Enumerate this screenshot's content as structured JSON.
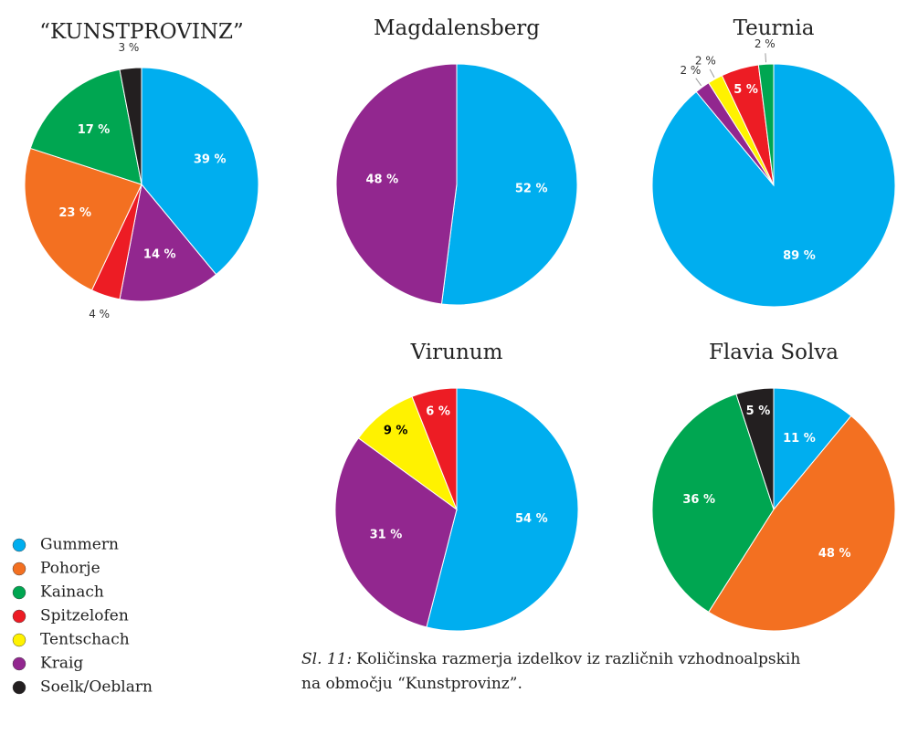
{
  "chart_data": [
    {
      "type": "pie",
      "title": "“KUNSTPROVINZ”",
      "categories": [
        "Gummern",
        "Kraig",
        "Spitzelofen",
        "Pohorje",
        "Kainach",
        "Soelk/Oeblarn"
      ],
      "values": [
        39,
        14,
        4,
        23,
        17,
        3
      ],
      "value_labels": [
        "39 %",
        "14 %",
        "4 %",
        "23 %",
        "17 %",
        "3 %"
      ]
    },
    {
      "type": "pie",
      "title": "Magdalensberg",
      "categories": [
        "Gummern",
        "Kraig"
      ],
      "values": [
        52,
        48
      ],
      "value_labels": [
        "52 %",
        "48 %"
      ]
    },
    {
      "type": "pie",
      "title": "Teurnia",
      "categories": [
        "Gummern",
        "Kraig",
        "Tentschach",
        "Spitzelofen",
        "Kainach"
      ],
      "values": [
        89,
        2,
        2,
        5,
        2
      ],
      "value_labels": [
        "89 %",
        "2 %",
        "2 %",
        "5 %",
        "2 %"
      ]
    },
    {
      "type": "pie",
      "title": "Virunum",
      "categories": [
        "Gummern",
        "Kraig",
        "Tentschach",
        "Spitzelofen"
      ],
      "values": [
        54,
        31,
        9,
        6
      ],
      "value_labels": [
        "54 %",
        "31 %",
        "9 %",
        "6 %"
      ]
    },
    {
      "type": "pie",
      "title": "Flavia Solva",
      "categories": [
        "Gummern",
        "Pohorje",
        "Kainach",
        "Soelk/Oeblarn"
      ],
      "values": [
        11,
        48,
        36,
        5
      ],
      "value_labels": [
        "11 %",
        "48 %",
        "36 %",
        "5 %"
      ]
    }
  ],
  "legend": {
    "categories": [
      "Gummern",
      "Pohorje",
      "Kainach",
      "Spitzelofen",
      "Tentschach",
      "Kraig",
      "Soelk/Oeblarn"
    ],
    "colors": [
      "#00aeef",
      "#f37021",
      "#00a651",
      "#ed1c24",
      "#fff200",
      "#92278f",
      "#231f20"
    ]
  },
  "caption": {
    "label": "Sl. 11:",
    "lines": [
      "Količinska razmerja izdelkov iz različnih vzhodnoalpskih",
      "na območju “Kunstprovinz”."
    ]
  }
}
